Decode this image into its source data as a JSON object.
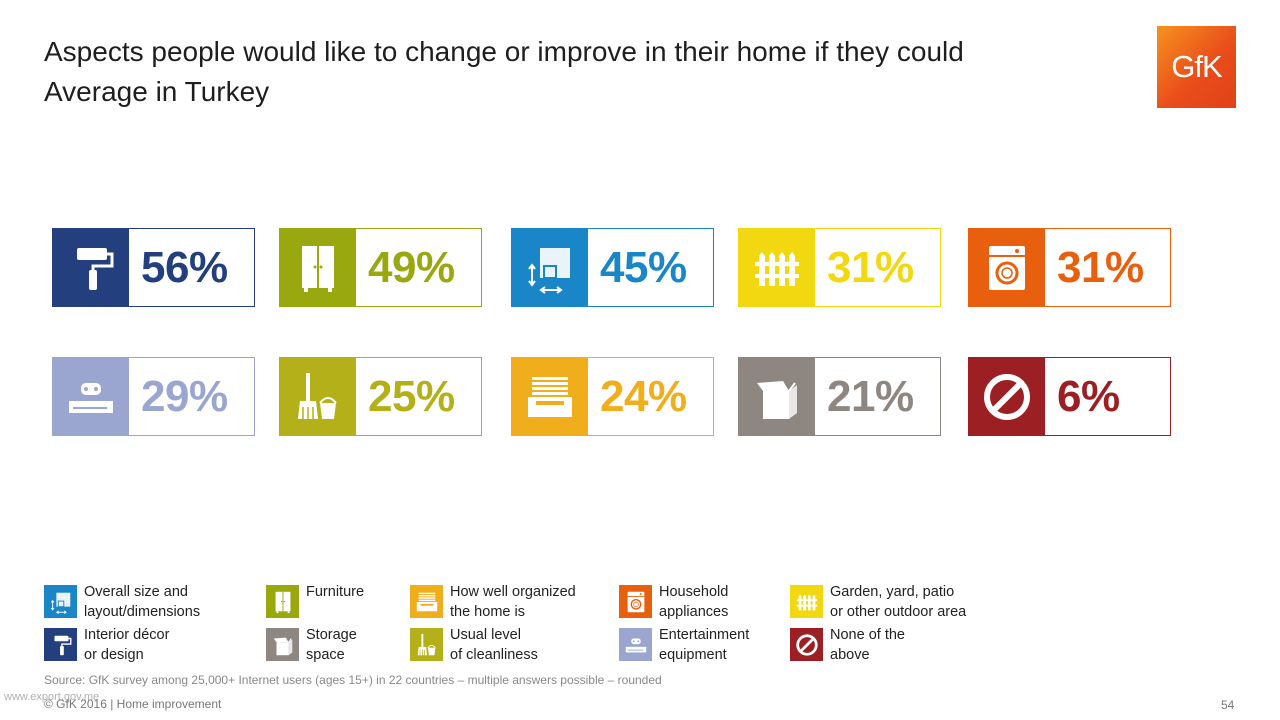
{
  "title_line1": "Aspects people would like to change or improve in their home if they could",
  "title_line2": "Average in Turkey",
  "logo_text": "GfK",
  "chart_data": {
    "type": "table",
    "title": "Aspects people would like to change or improve in their home if they could",
    "subtitle": "Average in Turkey",
    "unit": "%",
    "items": [
      {
        "category": "Interior décor or design",
        "value": 56,
        "label": "56%",
        "color": "#233f7e",
        "icon": "paint-roller-icon"
      },
      {
        "category": "Furniture",
        "value": 49,
        "label": "49%",
        "color": "#9aa80f",
        "icon": "wardrobe-icon"
      },
      {
        "category": "Overall size and layout/dimensions",
        "value": 45,
        "label": "45%",
        "color": "#1a86c7",
        "icon": "floor-plan-icon"
      },
      {
        "category": "Garden, yard, patio or other outdoor area",
        "value": 31,
        "label": "31%",
        "color": "#f2d810",
        "icon": "fence-icon"
      },
      {
        "category": "Household appliances",
        "value": 31,
        "label": "31%",
        "color": "#e8600e",
        "icon": "washing-machine-icon"
      },
      {
        "category": "Entertainment equipment",
        "value": 29,
        "label": "29%",
        "color": "#9aa6d0",
        "icon": "game-console-icon"
      },
      {
        "category": "Usual level of cleanliness",
        "value": 25,
        "label": "25%",
        "color": "#b4b019",
        "icon": "broom-bucket-icon"
      },
      {
        "category": "How well organized the home is",
        "value": 24,
        "label": "24%",
        "color": "#f0ad1c",
        "icon": "drawer-stack-icon"
      },
      {
        "category": "Storage space",
        "value": 21,
        "label": "21%",
        "color": "#8e8681",
        "icon": "open-box-icon"
      },
      {
        "category": "None of the above",
        "value": 6,
        "label": "6%",
        "color": "#9c1f24",
        "icon": "no-symbol-icon"
      }
    ]
  },
  "legend": [
    {
      "lines": [
        "Overall size and",
        "layout/dimensions"
      ],
      "color": "#1a86c7",
      "icon": "floor-plan-icon"
    },
    {
      "lines": [
        "Furniture"
      ],
      "color": "#9aa80f",
      "icon": "wardrobe-icon"
    },
    {
      "lines": [
        "How well organized",
        "the home is"
      ],
      "color": "#f0ad1c",
      "icon": "drawer-stack-icon"
    },
    {
      "lines": [
        "Household",
        "appliances"
      ],
      "color": "#e8600e",
      "icon": "washing-machine-icon"
    },
    {
      "lines": [
        "Garden, yard, patio",
        "or other outdoor area"
      ],
      "color": "#f2d810",
      "icon": "fence-icon"
    },
    {
      "lines": [
        "Interior décor",
        "or design"
      ],
      "color": "#233f7e",
      "icon": "paint-roller-icon"
    },
    {
      "lines": [
        "Storage",
        "space"
      ],
      "color": "#8e8681",
      "icon": "open-box-icon"
    },
    {
      "lines": [
        "Usual level",
        "of cleanliness"
      ],
      "color": "#b4b019",
      "icon": "broom-bucket-icon"
    },
    {
      "lines": [
        "Entertainment",
        "equipment"
      ],
      "color": "#9aa6d0",
      "icon": "game-console-icon"
    },
    {
      "lines": [
        "None of the",
        "above"
      ],
      "color": "#9c1f24",
      "icon": "no-symbol-icon"
    }
  ],
  "source": "Source: GfK survey among 25,000+ Internet users (ages 15+) in 22 countries – multiple answers possible – rounded",
  "footer": "© GfK 2016 | Home improvement",
  "watermark": "www.export.gov.me",
  "page_number": "54"
}
